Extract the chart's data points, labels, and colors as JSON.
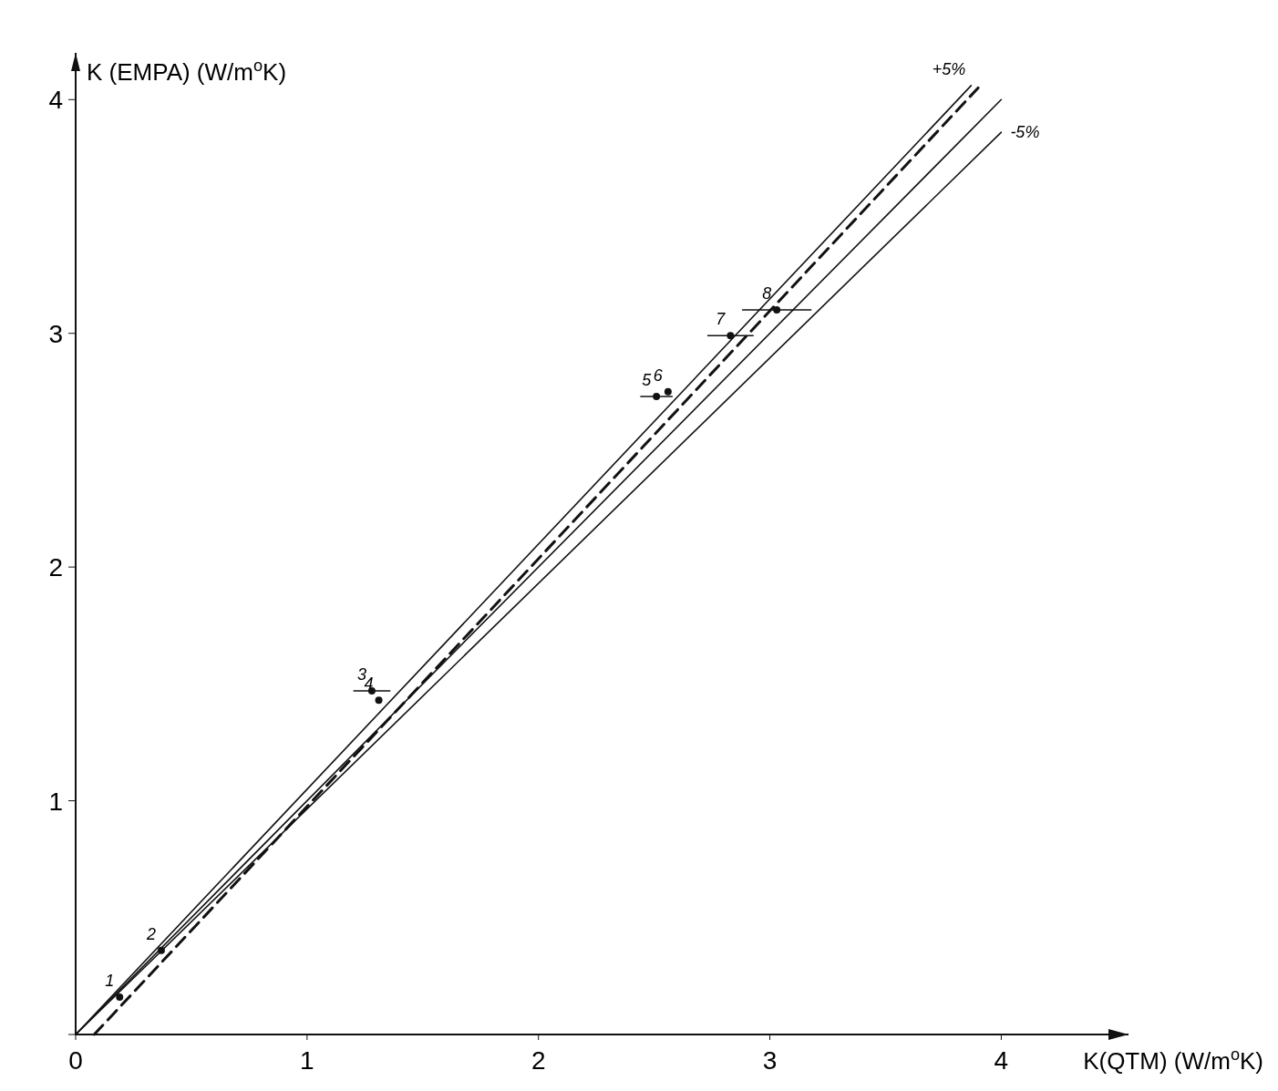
{
  "chart_data": {
    "type": "scatter",
    "xlabel": "K(QTM) (W/m$^{o}$K)",
    "ylabel": "K (EMPA) (W/m$^{o}$K)",
    "xlim": [
      0,
      4.55
    ],
    "ylim": [
      0,
      4.2
    ],
    "xticks": [
      {
        "value": 0,
        "label": "0"
      },
      1,
      2,
      3,
      4
    ],
    "yticks": [
      {
        "value": 0,
        "label": null
      },
      1,
      2,
      3,
      4
    ],
    "grid": false,
    "series": [
      {
        "type": "line",
        "color": "#111111",
        "line_style": "solid",
        "marker": "none",
        "x": [
          0,
          4.0
        ],
        "values": [
          0,
          4.0
        ]
      },
      {
        "type": "line",
        "color": "#111111",
        "line_style": "solid",
        "marker": "none",
        "x": [
          0,
          3.87
        ],
        "values": [
          0,
          4.06
        ]
      },
      {
        "type": "line",
        "color": "#111111",
        "line_style": "solid",
        "marker": "none",
        "x": [
          0,
          4.0
        ],
        "values": [
          0,
          3.86
        ]
      },
      {
        "type": "line",
        "color": "#111111",
        "line_style": "dashed",
        "marker": "none",
        "x": [
          0.08,
          3.9
        ],
        "values": [
          0,
          4.05
        ]
      },
      {
        "color": "#111111",
        "marker": "circle",
        "x": [
          0.19,
          0.37,
          1.28,
          1.31,
          2.51,
          2.56,
          2.83,
          3.03
        ],
        "values": [
          0.16,
          0.36,
          1.47,
          1.43,
          2.73,
          2.75,
          2.99,
          3.1
        ],
        "xerrors": [
          null,
          null,
          0.08,
          null,
          0.07,
          null,
          0.1,
          0.15
        ]
      }
    ],
    "annotations": [
      {
        "text": "+5%",
        "x": 3.87,
        "y": 4.06
      },
      {
        "text": "-5%",
        "x": 4.0,
        "y": 3.86
      },
      {
        "text": "1",
        "x": 0.19,
        "y": 0.16
      },
      {
        "text": "2",
        "x": 0.37,
        "y": 0.36
      },
      {
        "text": "3",
        "x": 1.28,
        "y": 1.47
      },
      {
        "text": "4",
        "x": 1.31,
        "y": 1.43
      },
      {
        "text": "5",
        "x": 2.51,
        "y": 2.73
      },
      {
        "text": "6",
        "x": 2.56,
        "y": 2.75
      },
      {
        "text": "7",
        "x": 2.83,
        "y": 2.99
      },
      {
        "text": "8",
        "x": 3.03,
        "y": 3.1
      }
    ]
  }
}
